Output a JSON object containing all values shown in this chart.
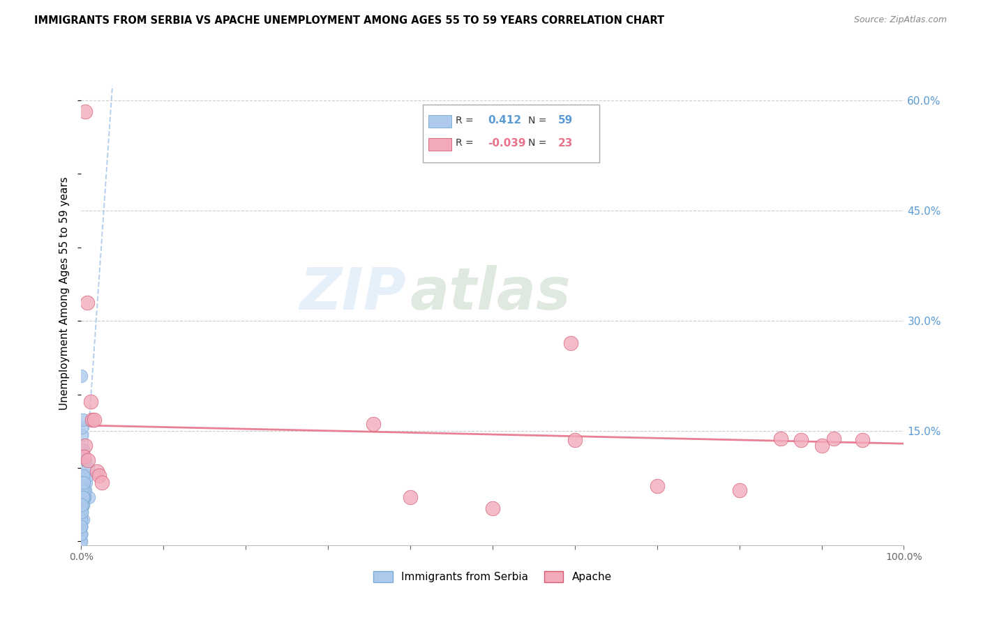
{
  "title": "IMMIGRANTS FROM SERBIA VS APACHE UNEMPLOYMENT AMONG AGES 55 TO 59 YEARS CORRELATION CHART",
  "source": "Source: ZipAtlas.com",
  "ylabel": "Unemployment Among Ages 55 to 59 years",
  "ylabel_ticks": [
    "15.0%",
    "30.0%",
    "45.0%",
    "60.0%"
  ],
  "ylabel_values": [
    0.15,
    0.3,
    0.45,
    0.6
  ],
  "xlim": [
    0.0,
    1.0
  ],
  "ylim": [
    -0.005,
    0.68
  ],
  "watermark_zip": "ZIP",
  "watermark_atlas": "atlas",
  "legend_serbia_label": "Immigrants from Serbia",
  "legend_apache_label": "Apache",
  "serbia_R": "0.412",
  "serbia_N": "59",
  "apache_R": "-0.039",
  "apache_N": "23",
  "serbia_color": "#adc9ec",
  "apache_color": "#f2aabb",
  "serbia_line_color": "#9bbfe8",
  "apache_line_color": "#e8728a",
  "serbia_dot_edge": "#7aaad4",
  "apache_dot_edge": "#d45870",
  "serbia_points_x": [
    0.0,
    0.001,
    0.002,
    0.003,
    0.004,
    0.005,
    0.006,
    0.007,
    0.008,
    0.009,
    0.0,
    0.001,
    0.002,
    0.0,
    0.001,
    0.003,
    0.002,
    0.004,
    0.005,
    0.001,
    0.0,
    0.001,
    0.0,
    0.002,
    0.003,
    0.001,
    0.0,
    0.0,
    0.001,
    0.0,
    0.002,
    0.001,
    0.0,
    0.0,
    0.001,
    0.003,
    0.0,
    0.001,
    0.0,
    0.002,
    0.0,
    0.001,
    0.0,
    0.002,
    0.0,
    0.001,
    0.0,
    0.0,
    0.001,
    0.002,
    0.003,
    0.0,
    0.001,
    0.0,
    0.0,
    0.001,
    0.0,
    0.002,
    0.001
  ],
  "serbia_points_y": [
    0.225,
    0.145,
    0.125,
    0.09,
    0.07,
    0.11,
    0.08,
    0.09,
    0.1,
    0.06,
    0.05,
    0.155,
    0.165,
    0.05,
    0.07,
    0.08,
    0.09,
    0.06,
    0.07,
    0.05,
    0.04,
    0.06,
    0.03,
    0.07,
    0.06,
    0.05,
    0.02,
    0.04,
    0.06,
    0.01,
    0.05,
    0.04,
    0.03,
    0.02,
    0.08,
    0.07,
    0.01,
    0.05,
    0.0,
    0.03,
    0.04,
    0.06,
    0.02,
    0.05,
    0.01,
    0.04,
    0.03,
    0.02,
    0.07,
    0.06,
    0.08,
    0.0,
    0.05,
    0.01,
    0.03,
    0.04,
    0.02,
    0.06,
    0.05
  ],
  "apache_points_x": [
    0.005,
    0.007,
    0.013,
    0.016,
    0.012,
    0.019,
    0.022,
    0.025,
    0.355,
    0.595,
    0.005,
    0.7,
    0.8,
    0.85,
    0.9,
    0.915,
    0.95,
    0.003,
    0.008,
    0.6,
    0.4,
    0.5,
    0.875
  ],
  "apache_points_y": [
    0.585,
    0.325,
    0.165,
    0.165,
    0.19,
    0.095,
    0.09,
    0.08,
    0.16,
    0.27,
    0.13,
    0.075,
    0.07,
    0.14,
    0.13,
    0.14,
    0.138,
    0.115,
    0.11,
    0.138,
    0.06,
    0.045,
    0.138
  ],
  "serbia_line_x": [
    0.0,
    0.038
  ],
  "serbia_line_y": [
    0.005,
    0.62
  ],
  "apache_line_x": [
    0.0,
    1.0
  ],
  "apache_line_y": [
    0.158,
    0.133
  ],
  "grid_color": "#cccccc",
  "background_color": "#ffffff",
  "right_tick_color": "#5b9bd5",
  "apache_legend_color": "#e8728a"
}
